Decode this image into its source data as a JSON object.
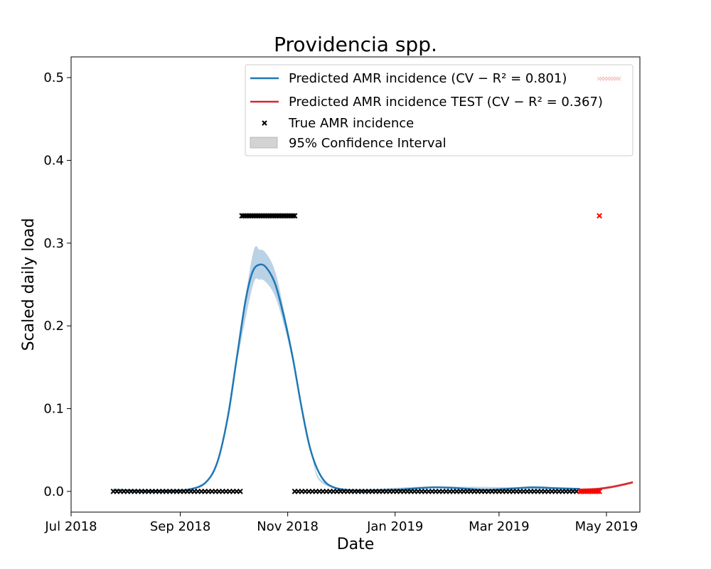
{
  "chart_data": {
    "type": "line",
    "title": "Providencia spp.",
    "xlabel": "Date",
    "ylabel": "Scaled daily load",
    "xlim": [
      "2018-07-01",
      "2019-05-20"
    ],
    "ylim": [
      -0.025,
      0.525
    ],
    "x_ticks": [
      {
        "date": "2018-07-01",
        "label": "Jul 2018"
      },
      {
        "date": "2018-09-01",
        "label": "Sep 2018"
      },
      {
        "date": "2018-11-01",
        "label": "Nov 2018"
      },
      {
        "date": "2019-01-01",
        "label": "Jan 2019"
      },
      {
        "date": "2019-03-01",
        "label": "Mar 2019"
      },
      {
        "date": "2019-05-01",
        "label": "May 2019"
      }
    ],
    "y_ticks": [
      {
        "value": 0.0,
        "label": "0.0"
      },
      {
        "value": 0.1,
        "label": "0.1"
      },
      {
        "value": 0.2,
        "label": "0.2"
      },
      {
        "value": 0.3,
        "label": "0.3"
      },
      {
        "value": 0.4,
        "label": "0.4"
      },
      {
        "value": 0.5,
        "label": "0.5"
      }
    ],
    "grid": false,
    "legend_position": "top-right",
    "colors": {
      "train_line": "#1f77b4",
      "train_ci": "#b3cde3",
      "test_line": "#d62728",
      "test_ci": "#f4b6b6",
      "true_markers": "#000000",
      "test_markers": "#ff0000"
    },
    "series": [
      {
        "name": "Predicted AMR incidence ($CV - R^2$ = 0.801)",
        "legend_label": "Predicted AMR incidence (CV − R² = 0.801)",
        "kind": "line",
        "color": "#1f77b4",
        "points": [
          [
            "2018-07-25",
            0.002
          ],
          [
            "2018-08-10",
            0.001
          ],
          [
            "2018-08-25",
            0.001
          ],
          [
            "2018-09-05",
            0.002
          ],
          [
            "2018-09-15",
            0.01
          ],
          [
            "2018-09-22",
            0.035
          ],
          [
            "2018-09-28",
            0.09
          ],
          [
            "2018-10-03",
            0.16
          ],
          [
            "2018-10-08",
            0.23
          ],
          [
            "2018-10-12",
            0.265
          ],
          [
            "2018-10-16",
            0.274
          ],
          [
            "2018-10-20",
            0.27
          ],
          [
            "2018-10-25",
            0.25
          ],
          [
            "2018-10-30",
            0.21
          ],
          [
            "2018-11-04",
            0.16
          ],
          [
            "2018-11-09",
            0.1
          ],
          [
            "2018-11-14",
            0.05
          ],
          [
            "2018-11-20",
            0.018
          ],
          [
            "2018-11-27",
            0.005
          ],
          [
            "2018-12-10",
            0.001
          ],
          [
            "2019-01-01",
            0.002
          ],
          [
            "2019-01-15",
            0.004
          ],
          [
            "2019-01-25",
            0.005
          ],
          [
            "2019-02-05",
            0.004
          ],
          [
            "2019-02-20",
            0.002
          ],
          [
            "2019-03-05",
            0.003
          ],
          [
            "2019-03-20",
            0.005
          ],
          [
            "2019-04-01",
            0.004
          ],
          [
            "2019-04-16",
            0.003
          ]
        ],
        "ci_upper": [
          [
            "2018-07-25",
            0.003
          ],
          [
            "2018-09-05",
            0.003
          ],
          [
            "2018-09-22",
            0.037
          ],
          [
            "2018-10-03",
            0.166
          ],
          [
            "2018-10-12",
            0.285
          ],
          [
            "2018-10-16",
            0.292
          ],
          [
            "2018-10-20",
            0.287
          ],
          [
            "2018-10-25",
            0.265
          ],
          [
            "2018-10-30",
            0.218
          ],
          [
            "2018-11-04",
            0.165
          ],
          [
            "2018-11-14",
            0.053
          ],
          [
            "2018-11-27",
            0.006
          ],
          [
            "2019-01-25",
            0.006
          ],
          [
            "2019-04-16",
            0.004
          ]
        ],
        "ci_lower": [
          [
            "2018-07-25",
            0.001
          ],
          [
            "2018-09-05",
            0.001
          ],
          [
            "2018-09-22",
            0.033
          ],
          [
            "2018-10-03",
            0.154
          ],
          [
            "2018-10-12",
            0.247
          ],
          [
            "2018-10-16",
            0.256
          ],
          [
            "2018-10-20",
            0.252
          ],
          [
            "2018-10-25",
            0.235
          ],
          [
            "2018-10-30",
            0.2
          ],
          [
            "2018-11-04",
            0.155
          ],
          [
            "2018-11-14",
            0.047
          ],
          [
            "2018-11-27",
            0.004
          ],
          [
            "2019-01-25",
            0.004
          ],
          [
            "2019-04-16",
            0.002
          ]
        ]
      },
      {
        "name": "Predicted AMR incidence TEST ($CV - R^2$ = 0.367)",
        "legend_label": "Predicted AMR incidence TEST (CV − R² = 0.367)",
        "kind": "line",
        "color": "#d62728",
        "points": [
          [
            "2019-04-16",
            0.002
          ],
          [
            "2019-04-26",
            0.003
          ],
          [
            "2019-05-03",
            0.005
          ],
          [
            "2019-05-10",
            0.008
          ],
          [
            "2019-05-16",
            0.011
          ]
        ]
      },
      {
        "name": "True AMR incidence",
        "kind": "scatter",
        "marker": "x",
        "color": "#000000",
        "runs": [
          {
            "start": "2018-07-25",
            "end": "2018-10-06",
            "step_days": 2,
            "y": 0.0
          },
          {
            "start": "2018-10-06",
            "end": "2018-11-05",
            "step_days": 1,
            "y": 0.333
          },
          {
            "start": "2018-11-05",
            "end": "2019-04-16",
            "step_days": 2,
            "y": 0.0
          }
        ]
      },
      {
        "name": "True AMR incidence TEST",
        "kind": "scatter",
        "marker": "x",
        "color": "#ff0000",
        "runs": [
          {
            "start": "2019-04-16",
            "end": "2019-04-27",
            "step_days": 1,
            "y": 0.0
          }
        ],
        "points": [
          [
            "2019-04-27",
            0.333
          ]
        ]
      }
    ],
    "legend": [
      {
        "label": "Predicted AMR incidence (CV − R² = 0.801)",
        "swatch": "line",
        "color": "#1f77b4"
      },
      {
        "label": "Predicted AMR incidence TEST (CV − R² = 0.367)",
        "swatch": "line",
        "color": "#d62728"
      },
      {
        "label": "True AMR incidence",
        "swatch": "x",
        "color": "#000000"
      },
      {
        "label": "95% Confidence Interval",
        "swatch": "patch",
        "color": "#d3d3d3"
      }
    ]
  }
}
